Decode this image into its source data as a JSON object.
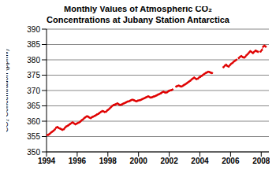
{
  "chart_data": {
    "type": "line",
    "title": "Monthly Values of Atmospheric CO₂ Concentrations at Jubany Station Antarctica",
    "y_label": "CO₂ Concentration (ppmv)",
    "xlim": [
      1994,
      2008.5
    ],
    "xticks": [
      1994,
      1996,
      1998,
      2000,
      2002,
      2004,
      2006,
      2008
    ],
    "ylim": [
      350,
      390
    ],
    "yticks": [
      350,
      355,
      360,
      365,
      370,
      375,
      380,
      385,
      390
    ],
    "grid": true,
    "marker": "circle",
    "color": "#e00000",
    "x": [
      1994.04,
      1994.13,
      1994.21,
      1994.29,
      1994.38,
      1994.46,
      1994.54,
      1994.63,
      1994.71,
      1994.79,
      1994.88,
      1994.96,
      1995.04,
      1995.13,
      1995.21,
      1995.29,
      1995.38,
      1995.46,
      1995.54,
      1995.63,
      1995.71,
      1995.79,
      1995.88,
      1995.96,
      1996.04,
      1996.13,
      1996.21,
      1996.29,
      1996.38,
      1996.46,
      1996.54,
      1996.63,
      1996.71,
      1996.79,
      1996.88,
      1996.96,
      1997.04,
      1997.13,
      1997.21,
      1997.29,
      1997.38,
      1997.46,
      1997.54,
      1997.63,
      1997.71,
      1997.79,
      1997.88,
      1997.96,
      1998.04,
      1998.13,
      1998.21,
      1998.29,
      1998.38,
      1998.46,
      1998.54,
      1998.63,
      1998.71,
      1998.79,
      1998.88,
      1998.96,
      1999.04,
      1999.13,
      1999.21,
      1999.29,
      1999.38,
      1999.46,
      1999.54,
      1999.63,
      1999.71,
      1999.79,
      1999.88,
      1999.96,
      2000.04,
      2000.13,
      2000.21,
      2000.29,
      2000.38,
      2000.46,
      2000.54,
      2000.63,
      2000.71,
      2000.79,
      2000.88,
      2000.96,
      2001.04,
      2001.13,
      2001.21,
      2001.29,
      2001.38,
      2001.46,
      2001.54,
      2001.63,
      2001.71,
      2001.79,
      2001.88,
      2001.96,
      2002.04,
      2002.13,
      2002.21,
      2002.29,
      2002.38,
      2002.46,
      2002.54,
      2002.63,
      2002.71,
      2002.79,
      2002.88,
      2002.96,
      2003.04,
      2003.13,
      2003.21,
      2003.29,
      2003.38,
      2003.46,
      2003.54,
      2003.63,
      2003.71,
      2003.79,
      2003.88,
      2003.96,
      2004.04,
      2004.13,
      2004.21,
      2004.29,
      2004.38,
      2004.46,
      2004.54,
      2004.63,
      2004.71,
      2004.79,
      2004.88,
      2004.96,
      2005.04,
      2005.13,
      2005.21,
      2005.29,
      2005.38,
      2005.46,
      2005.54,
      2005.63,
      2005.71,
      2005.79,
      2005.88,
      2005.96,
      2006.04,
      2006.13,
      2006.21,
      2006.29,
      2006.38,
      2006.46,
      2006.54,
      2006.63,
      2006.71,
      2006.79,
      2006.88,
      2006.96,
      2007.04,
      2007.13,
      2007.21,
      2007.29,
      2007.38,
      2007.46,
      2007.54,
      2007.63,
      2007.71,
      2007.79,
      2007.88,
      2007.96,
      2008.04,
      2008.13,
      2008.21,
      2008.29
    ],
    "values": [
      355.5,
      355.6,
      355.9,
      356.3,
      356.6,
      356.9,
      357.3,
      357.9,
      358.1,
      357.8,
      357.6,
      357.4,
      357.2,
      357.4,
      357.9,
      358.3,
      358.5,
      358.8,
      359.1,
      359.4,
      359.6,
      359.3,
      359.0,
      359.2,
      359.4,
      359.6,
      359.9,
      360.3,
      360.6,
      361.0,
      361.3,
      361.6,
      361.5,
      361.2,
      361.0,
      361.3,
      361.5,
      361.7,
      361.9,
      362.2,
      362.4,
      362.7,
      363.0,
      363.3,
      363.2,
      363.0,
      363.1,
      363.5,
      363.8,
      364.2,
      364.6,
      365.0,
      365.3,
      365.4,
      365.6,
      365.8,
      365.5,
      365.3,
      365.4,
      365.6,
      365.8,
      366.0,
      366.2,
      366.4,
      366.5,
      366.7,
      366.9,
      367.0,
      366.8,
      366.6,
      366.5,
      366.7,
      366.8,
      366.9,
      367.1,
      367.3,
      367.5,
      367.7,
      367.9,
      368.1,
      367.9,
      367.7,
      367.8,
      368.0,
      368.1,
      368.3,
      368.5,
      368.7,
      368.9,
      369.1,
      369.4,
      369.6,
      369.4,
      369.3,
      369.5,
      369.8,
      370.0,
      370.1,
      370.3,
      null,
      null,
      371.3,
      371.5,
      371.6,
      371.4,
      371.3,
      371.5,
      371.8,
      372.0,
      372.3,
      372.6,
      372.9,
      373.2,
      373.6,
      373.9,
      374.2,
      373.9,
      373.7,
      373.9,
      374.3,
      374.5,
      374.8,
      375.1,
      375.4,
      375.7,
      375.9,
      376.1,
      376.0,
      375.8,
      375.7,
      null,
      null,
      null,
      null,
      null,
      null,
      null,
      null,
      377.6,
      378.1,
      378.4,
      378.0,
      377.8,
      378.3,
      378.7,
      379.0,
      379.4,
      379.7,
      380.0,
      null,
      380.6,
      381.0,
      381.2,
      380.9,
      380.7,
      381.0,
      381.5,
      381.9,
      382.4,
      382.8,
      382.5,
      382.2,
      382.6,
      383.0,
      382.8,
      382.6,
      null,
      382.7,
      383.2,
      384.3,
      384.6,
      384.3
    ]
  }
}
